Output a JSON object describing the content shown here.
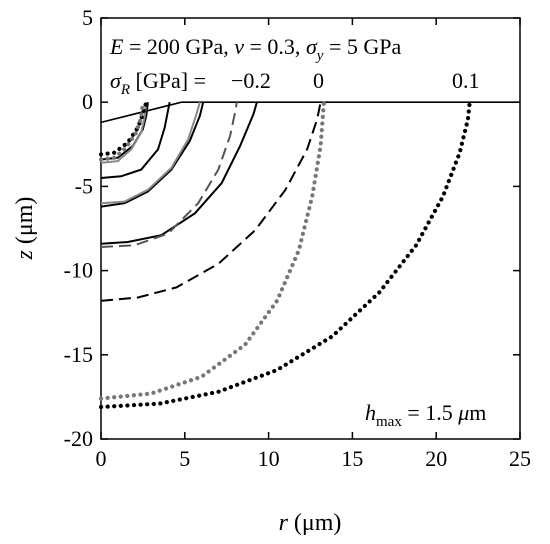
{
  "chart_data": {
    "type": "line",
    "xlabel": {
      "symbol": "r",
      "unit": "(μm)"
    },
    "ylabel": {
      "symbol": "z",
      "unit": "(μm)"
    },
    "xlim": [
      0,
      25
    ],
    "ylim": [
      -20,
      5
    ],
    "xticks": [
      "0",
      "5",
      "10",
      "15",
      "20",
      "25"
    ],
    "yticks": [
      "5",
      "0",
      "-5",
      "-10",
      "-15",
      "-20"
    ],
    "grid": false,
    "legend": "none",
    "annotations": {
      "params": {
        "E": "E",
        "E_val": " = 200 GPa, ",
        "nu": "ν",
        "nu_val": " = 0.3, ",
        "sigma": "σ",
        "sub_y": "y",
        "sy_val": " = 5 GPa"
      },
      "sigmaR": {
        "sigma": "σ",
        "sub_R": "R",
        "rest": " [GPa] = ",
        "v1": "−0.2",
        "v2": "0",
        "v3": "0.1"
      },
      "hmax": {
        "h": "h",
        "sub": "max",
        "val": " = 1.5 ",
        "mu": "μ",
        "m": "m"
      }
    },
    "surface": {
      "x": [
        0,
        4.8,
        25
      ],
      "y": [
        -1.2,
        0,
        0
      ],
      "color": "#000000"
    },
    "series": [
      {
        "group": "sigmaR=-0.2",
        "style": "solid",
        "color": "#000000",
        "x": [
          0,
          1.0,
          1.9,
          2.5,
          2.7,
          2.8
        ],
        "y": [
          -3.4,
          -3.3,
          -2.6,
          -1.6,
          -0.8,
          0
        ]
      },
      {
        "group": "sigmaR=-0.2",
        "style": "solid",
        "color": "#888888",
        "x": [
          0,
          1.0,
          1.8,
          2.4,
          2.6,
          2.7
        ],
        "y": [
          -3.6,
          -3.5,
          -2.8,
          -1.8,
          -0.9,
          0
        ]
      },
      {
        "group": "sigmaR=-0.2",
        "style": "dotted",
        "color": "#000000",
        "x": [
          0,
          0.8,
          1.6,
          2.2,
          2.5,
          2.7
        ],
        "y": [
          -3.1,
          -3.0,
          -2.4,
          -1.5,
          -0.7,
          0
        ]
      },
      {
        "group": "sigmaR=-0.2",
        "style": "dotted",
        "color": "#777777",
        "x": [
          0,
          0.8,
          1.5,
          2.1,
          2.4,
          2.5
        ],
        "y": [
          -3.4,
          -3.3,
          -2.7,
          -1.8,
          -0.9,
          0
        ]
      },
      {
        "group": "sigmaR=-0.2",
        "style": "solid",
        "color": "#000000",
        "x": [
          0,
          1.2,
          2.4,
          3.4,
          3.8,
          4.0,
          4.1
        ],
        "y": [
          -4.5,
          -4.4,
          -4.0,
          -2.8,
          -1.5,
          -0.5,
          0
        ]
      },
      {
        "group": "sigmaR=-0.2",
        "style": "solid",
        "color": "#000000",
        "x": [
          0,
          1.4,
          2.8,
          4.2,
          5.3,
          5.9,
          6.1
        ],
        "y": [
          -6.2,
          -6.0,
          -5.3,
          -4.0,
          -2.3,
          -0.8,
          0
        ]
      },
      {
        "group": "sigmaR=-0.2",
        "style": "solid",
        "color": "#888888",
        "x": [
          0,
          1.4,
          2.8,
          4.2,
          5.2,
          5.7,
          5.9
        ],
        "y": [
          -6.0,
          -5.9,
          -5.2,
          -3.9,
          -2.2,
          -0.7,
          0
        ]
      },
      {
        "group": "sigmaR=-0.2",
        "style": "solid",
        "color": "#000000",
        "x": [
          0,
          1.6,
          3.6,
          5.6,
          7.2,
          8.3,
          9.1,
          9.3
        ],
        "y": [
          -8.4,
          -8.3,
          -7.9,
          -6.6,
          -4.8,
          -2.6,
          -0.7,
          0
        ]
      },
      {
        "group": "sigmaR=-0.2",
        "style": "dashed",
        "color": "#555555",
        "x": [
          0,
          2.0,
          4.0,
          5.8,
          7.0,
          7.7,
          8.0,
          8.1
        ],
        "y": [
          -8.6,
          -8.5,
          -7.8,
          -6.0,
          -4.0,
          -2.0,
          -0.6,
          0
        ]
      },
      {
        "group": "sigmaR=0",
        "style": "dashed",
        "color": "#000000",
        "x": [
          0,
          2.2,
          4.5,
          7.0,
          9.2,
          11.0,
          12.3,
          12.9,
          13.1
        ],
        "y": [
          -11.8,
          -11.6,
          -11.0,
          -9.6,
          -7.6,
          -5.2,
          -2.8,
          -1.0,
          0
        ]
      },
      {
        "group": "sigmaR=0",
        "style": "dotted",
        "color": "#777777",
        "x": [
          0,
          3.0,
          6.0,
          8.6,
          10.5,
          11.8,
          12.6,
          13.1,
          13.3
        ],
        "y": [
          -17.6,
          -17.3,
          -16.3,
          -14.4,
          -11.8,
          -8.8,
          -5.6,
          -2.6,
          0
        ]
      },
      {
        "group": "sigmaR=0.1",
        "style": "dotted",
        "color": "#000000",
        "x": [
          0,
          3.5,
          7.0,
          10.5,
          13.8,
          16.6,
          18.8,
          20.4,
          21.4,
          21.9,
          22.0
        ],
        "y": [
          -18.1,
          -17.9,
          -17.2,
          -15.9,
          -13.9,
          -11.3,
          -8.5,
          -5.6,
          -3.0,
          -1.0,
          0
        ]
      }
    ]
  }
}
